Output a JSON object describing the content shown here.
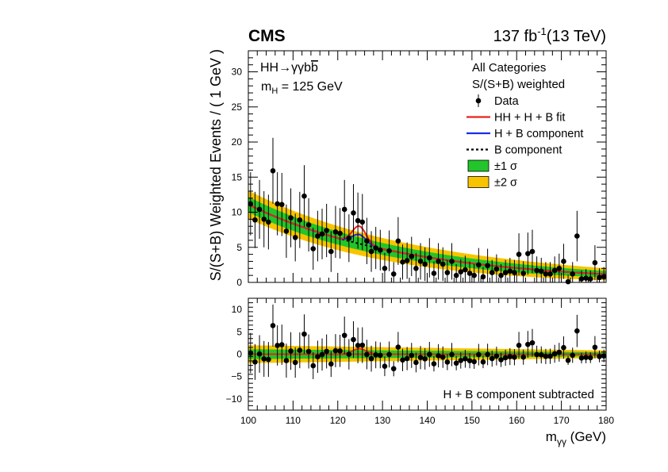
{
  "chart_data": {
    "type": "scatter",
    "experiment": "CMS",
    "luminosity": "137 fb",
    "luminosity_exp": "-1",
    "energy": "(13 TeV)",
    "process": "HH→γγb",
    "process_bbar": "b",
    "mass_label": "m",
    "mass_sub": "H",
    "mass_value": " = 125 GeV",
    "info_line1": "All Categories",
    "info_line2": "S/(S+B) weighted",
    "xlabel": "m",
    "xlabel_sub": "γγ",
    "xlabel_unit": " (GeV)",
    "ylabel": "S/(S+B) Weighted Events / ( 1 GeV )",
    "lower_label": "H + B component subtracted",
    "xlim": [
      100,
      180
    ],
    "ylim_top": [
      0,
      33
    ],
    "ylim_bottom": [
      -12.5,
      12.5
    ],
    "xticks": [
      100,
      110,
      120,
      130,
      140,
      150,
      160,
      170,
      180
    ],
    "yticks_top": [
      0,
      5,
      10,
      15,
      20,
      25,
      30
    ],
    "yticks_bottom": [
      -10,
      -5,
      0,
      5,
      10
    ],
    "legend": [
      {
        "label": "Data",
        "kind": "marker",
        "color": "#000000"
      },
      {
        "label": "HH + H + B fit",
        "kind": "line",
        "color": "#e8231e"
      },
      {
        "label": "H + B component",
        "kind": "line",
        "color": "#1a2ee8"
      },
      {
        "label": "B component",
        "kind": "dash",
        "color": "#000000"
      },
      {
        "label": "±1 σ",
        "kind": "box",
        "color": "#22c52a"
      },
      {
        "label": "±2 σ",
        "kind": "box",
        "color": "#f8c400"
      }
    ],
    "colors": {
      "fit": "#e8231e",
      "hb": "#1a2ee8",
      "band1": "#22c52a",
      "band2": "#f8c400",
      "data": "#000000"
    },
    "background_model": {
      "amplitude": 11.1,
      "decay": 0.0282,
      "x0": 100
    },
    "signal_peak": {
      "mass": 124.8,
      "width": 1.55,
      "hh_height": 2.5,
      "h_height": 1.3
    },
    "band": {
      "sigma1_at_100": 1.1,
      "sigma1_at_180": 0.45,
      "sigma2_at_100": 2.0,
      "sigma2_at_180": 0.85
    },
    "data": {
      "x": [
        100.5,
        101.5,
        102.5,
        103.5,
        104.5,
        105.5,
        106.5,
        107.5,
        108.5,
        109.5,
        110.5,
        111.5,
        112.5,
        113.5,
        114.5,
        115.5,
        116.5,
        117.5,
        118.5,
        119.5,
        120.5,
        121.5,
        122.5,
        123.5,
        124.5,
        125.5,
        126.5,
        127.5,
        128.5,
        129.5,
        130.5,
        131.5,
        132.5,
        133.5,
        134.5,
        135.5,
        136.5,
        137.5,
        138.5,
        139.5,
        140.5,
        141.5,
        142.5,
        143.5,
        144.5,
        145.5,
        146.5,
        147.5,
        148.5,
        149.5,
        150.5,
        151.5,
        152.5,
        153.5,
        154.5,
        155.5,
        156.5,
        157.5,
        158.5,
        159.5,
        160.5,
        161.5,
        162.5,
        163.5,
        164.5,
        165.5,
        166.5,
        167.5,
        168.5,
        169.5,
        170.5,
        171.5,
        172.5,
        173.5,
        174.5,
        175.5,
        176.5,
        177.5,
        178.5,
        179.5
      ],
      "y": [
        11.2,
        8.9,
        10.4,
        9.0,
        8.6,
        15.9,
        11.2,
        11.1,
        7.3,
        9.2,
        6.4,
        8.9,
        12.3,
        8.2,
        4.8,
        6.6,
        6.9,
        7.4,
        4.4,
        7.2,
        7.0,
        10.4,
        6.3,
        9.9,
        8.8,
        8.6,
        5.9,
        4.4,
        4.9,
        4.6,
        2.0,
        4.5,
        1.2,
        5.9,
        2.9,
        3.1,
        3.7,
        2.0,
        3.0,
        2.6,
        3.5,
        1.3,
        3.0,
        2.6,
        1.4,
        3.0,
        1.0,
        1.5,
        1.8,
        1.3,
        1.0,
        2.5,
        0.8,
        2.4,
        1.4,
        1.9,
        1.0,
        1.4,
        1.6,
        1.4,
        4.0,
        1.3,
        4.1,
        4.4,
        1.7,
        1.6,
        1.2,
        1.2,
        1.7,
        2.0,
        3.0,
        0.1,
        1.2,
        6.6,
        0.5,
        0.6,
        0.5,
        2.8,
        0.7,
        0.8
      ],
      "err": [
        4.5,
        4.0,
        4.2,
        4.0,
        3.9,
        4.7,
        4.5,
        4.5,
        3.8,
        4.2,
        3.4,
        4.0,
        4.4,
        3.8,
        3.0,
        3.6,
        3.6,
        3.8,
        2.9,
        3.7,
        3.6,
        4.2,
        3.4,
        4.1,
        4.0,
        4.0,
        3.3,
        2.9,
        3.0,
        2.9,
        2.2,
        2.9,
        1.7,
        3.4,
        2.5,
        2.6,
        2.8,
        2.2,
        2.6,
        2.4,
        2.8,
        1.7,
        2.6,
        2.4,
        1.8,
        2.6,
        1.6,
        1.8,
        2.0,
        1.7,
        1.6,
        2.4,
        1.4,
        2.4,
        1.8,
        2.1,
        1.6,
        1.8,
        1.9,
        1.8,
        3.0,
        1.7,
        3.0,
        3.1,
        2.0,
        1.9,
        1.7,
        1.7,
        2.0,
        2.1,
        2.5,
        1.0,
        1.7,
        3.6,
        1.2,
        1.3,
        1.2,
        2.5,
        1.3,
        1.4
      ]
    }
  }
}
